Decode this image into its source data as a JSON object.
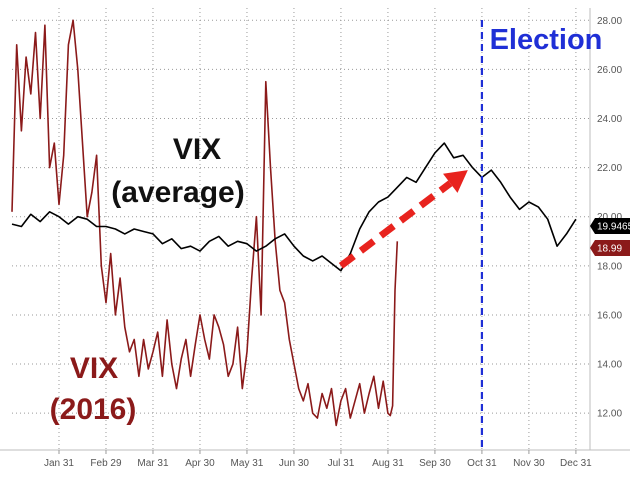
{
  "chart_data": {
    "type": "line",
    "title": "",
    "xlabel": "",
    "ylabel": "",
    "ylim": [
      10.5,
      28.5
    ],
    "y_ticks": [
      "12.00",
      "14.00",
      "16.00",
      "18.00",
      "20.00",
      "22.00",
      "24.00",
      "26.00",
      "28.00"
    ],
    "y_tick_values": [
      12,
      14,
      16,
      18,
      20,
      22,
      24,
      26,
      28
    ],
    "x_ticks": [
      "Jan 31",
      "Feb 29",
      "Mar 31",
      "Apr 30",
      "May 31",
      "Jun 30",
      "Jul 31",
      "Aug 31",
      "Sep 30",
      "Oct 31",
      "Nov 30",
      "Dec 31"
    ],
    "x_tick_values": [
      1.0,
      2.0,
      3.0,
      4.0,
      5.0,
      6.0,
      7.0,
      8.0,
      9.0,
      10.0,
      11.0,
      12.0
    ],
    "x_unit": "month of year (Jan 31 = 1)",
    "grid": true,
    "series": [
      {
        "name": "VIX (average)",
        "color": "#000000",
        "last_value_label": "19.9465",
        "x": [
          0.0,
          0.2,
          0.4,
          0.6,
          0.8,
          1.0,
          1.2,
          1.4,
          1.6,
          1.8,
          2.0,
          2.2,
          2.4,
          2.6,
          2.8,
          3.0,
          3.2,
          3.4,
          3.6,
          3.8,
          4.0,
          4.2,
          4.4,
          4.6,
          4.8,
          5.0,
          5.2,
          5.4,
          5.6,
          5.8,
          6.0,
          6.2,
          6.4,
          6.6,
          6.8,
          7.0,
          7.2,
          7.4,
          7.6,
          7.8,
          8.0,
          8.2,
          8.4,
          8.6,
          8.8,
          9.0,
          9.2,
          9.4,
          9.6,
          9.8,
          10.0,
          10.2,
          10.4,
          10.6,
          10.8,
          11.0,
          11.2,
          11.4,
          11.6,
          11.8,
          12.0
        ],
        "values": [
          19.7,
          19.6,
          20.1,
          19.8,
          20.2,
          20.0,
          19.7,
          20.0,
          19.9,
          19.6,
          19.6,
          19.5,
          19.3,
          19.5,
          19.4,
          19.3,
          18.9,
          19.1,
          18.7,
          18.8,
          18.6,
          19.0,
          19.2,
          18.8,
          19.0,
          18.9,
          18.6,
          18.8,
          19.1,
          19.3,
          18.8,
          18.4,
          18.2,
          18.4,
          18.1,
          17.8,
          18.5,
          19.5,
          20.2,
          20.6,
          20.8,
          21.2,
          21.6,
          21.4,
          22.0,
          22.6,
          23.0,
          22.4,
          22.5,
          22.0,
          21.6,
          21.9,
          21.4,
          20.8,
          20.3,
          20.6,
          20.4,
          19.9,
          18.8,
          19.3,
          19.9
        ]
      },
      {
        "name": "VIX (2016)",
        "color": "#8b1a1a",
        "last_value_label": "18.99",
        "x": [
          0.0,
          0.1,
          0.2,
          0.3,
          0.4,
          0.5,
          0.6,
          0.7,
          0.8,
          0.9,
          1.0,
          1.1,
          1.2,
          1.3,
          1.4,
          1.5,
          1.6,
          1.7,
          1.8,
          1.9,
          2.0,
          2.1,
          2.2,
          2.3,
          2.4,
          2.5,
          2.6,
          2.7,
          2.8,
          2.9,
          3.0,
          3.1,
          3.2,
          3.3,
          3.4,
          3.5,
          3.6,
          3.7,
          3.8,
          3.9,
          4.0,
          4.1,
          4.2,
          4.3,
          4.4,
          4.5,
          4.6,
          4.7,
          4.8,
          4.9,
          5.0,
          5.1,
          5.2,
          5.3,
          5.4,
          5.5,
          5.6,
          5.7,
          5.8,
          5.9,
          6.0,
          6.1,
          6.2,
          6.3,
          6.4,
          6.5,
          6.6,
          6.7,
          6.8,
          6.9,
          7.0,
          7.1,
          7.2,
          7.3,
          7.4,
          7.5,
          7.6,
          7.7,
          7.8,
          7.9,
          8.0,
          8.05,
          8.1,
          8.15,
          8.2
        ],
        "values": [
          20.2,
          27.0,
          23.5,
          26.5,
          25.0,
          27.5,
          24.0,
          27.8,
          22.0,
          23.0,
          20.5,
          22.5,
          27.0,
          28.0,
          26.0,
          23.0,
          20.0,
          21.0,
          22.5,
          18.0,
          16.5,
          18.5,
          16.0,
          17.5,
          15.5,
          14.5,
          15.0,
          13.5,
          15.0,
          13.8,
          14.5,
          15.3,
          13.5,
          15.8,
          14.0,
          13.0,
          14.2,
          15.0,
          13.5,
          14.8,
          16.0,
          15.0,
          14.2,
          16.0,
          15.5,
          14.8,
          13.5,
          14.0,
          15.5,
          13.0,
          14.5,
          17.5,
          20.0,
          16.0,
          25.5,
          22.0,
          19.0,
          17.0,
          16.5,
          15.0,
          14.0,
          13.0,
          12.5,
          13.2,
          12.0,
          11.8,
          12.8,
          12.2,
          13.0,
          11.5,
          12.5,
          13.0,
          11.8,
          12.5,
          13.2,
          12.0,
          12.8,
          13.5,
          12.2,
          13.3,
          12.0,
          11.9,
          12.3,
          17.0,
          19.0
        ]
      }
    ],
    "annotations": {
      "avg_label_line1": "VIX",
      "avg_label_line2": "(average)",
      "y2016_label_line1": "VIX",
      "y2016_label_line2": "(2016)",
      "event_label": "Election",
      "event_x": 10.0,
      "event_color": "#1f2fd6",
      "arrow_color": "#e8231e",
      "arrow_from": [
        7.0,
        18.0
      ],
      "arrow_to": [
        9.7,
        21.9
      ]
    }
  }
}
